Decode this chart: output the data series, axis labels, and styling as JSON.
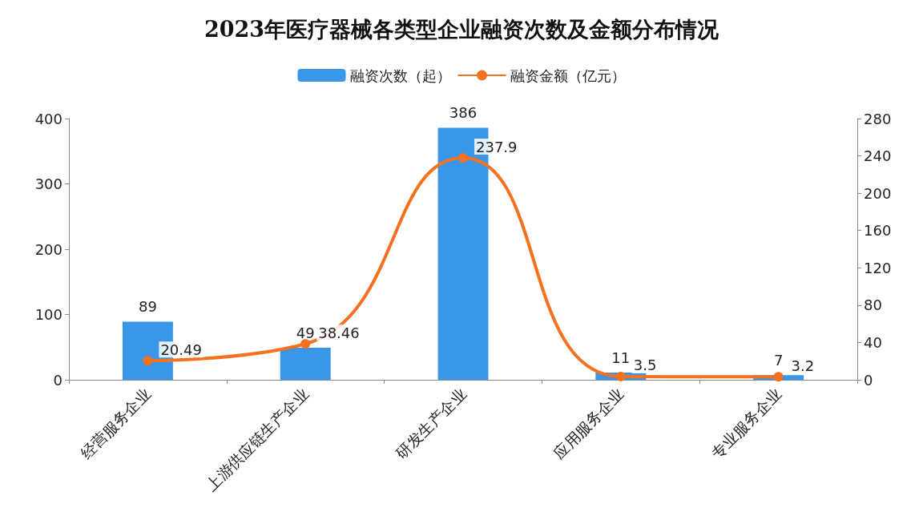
{
  "chart_data": {
    "type": "bar",
    "title": "2023年医疗器械各类型企业融资次数及金额分布情况",
    "categories": [
      "经营服务企业",
      "上游供应链生产企业",
      "研发生产企业",
      "应用服务企业",
      "专业服务企业"
    ],
    "series": [
      {
        "name": "融资次数（起）",
        "color": "#3a96e8",
        "values": [
          89,
          49,
          386,
          11,
          7
        ]
      },
      {
        "name": "融资金额（亿元）",
        "type": "line",
        "axis": "y2",
        "color": "#f4711f",
        "values": [
          20.49,
          38.46,
          237.9,
          3.5,
          3.2
        ]
      }
    ],
    "ylim": [
      0,
      400
    ],
    "yticks": [
      0,
      100,
      200,
      300,
      400
    ],
    "y2lim": [
      0,
      280
    ],
    "y2ticks": [
      0,
      40,
      80,
      120,
      160,
      200,
      240,
      280
    ],
    "data_labels": true,
    "legend": "top",
    "grid": false,
    "marker": "circle",
    "line_style": "solid"
  }
}
